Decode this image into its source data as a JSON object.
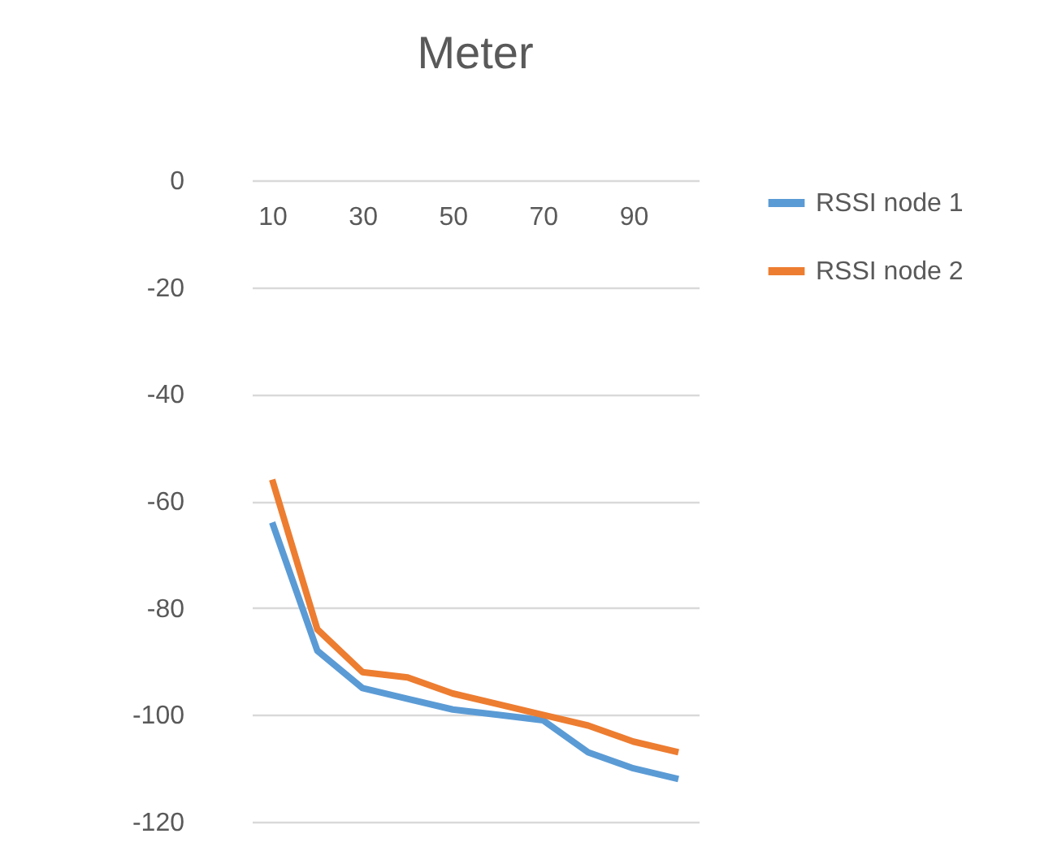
{
  "chart_data": {
    "type": "line",
    "title": "Meter",
    "categories": [
      "10",
      null,
      "30",
      null,
      "50",
      null,
      "70",
      null,
      "90",
      null
    ],
    "series": [
      {
        "name": "RSSI node 1",
        "color": "#5b9bd5",
        "values": [
          -64,
          -88,
          -95,
          -97,
          -99,
          -100,
          -101,
          -107,
          -110,
          -112
        ]
      },
      {
        "name": "RSSI node 2",
        "color": "#ed7d31",
        "values": [
          -56,
          -84,
          -92,
          -93,
          -96,
          -98,
          -100,
          -102,
          -105,
          -107
        ]
      }
    ],
    "ylim": [
      -120,
      0
    ],
    "yticks": [
      -120,
      -100,
      -80,
      -60,
      -40,
      -20,
      0
    ],
    "grid": "y",
    "legend": "right"
  }
}
